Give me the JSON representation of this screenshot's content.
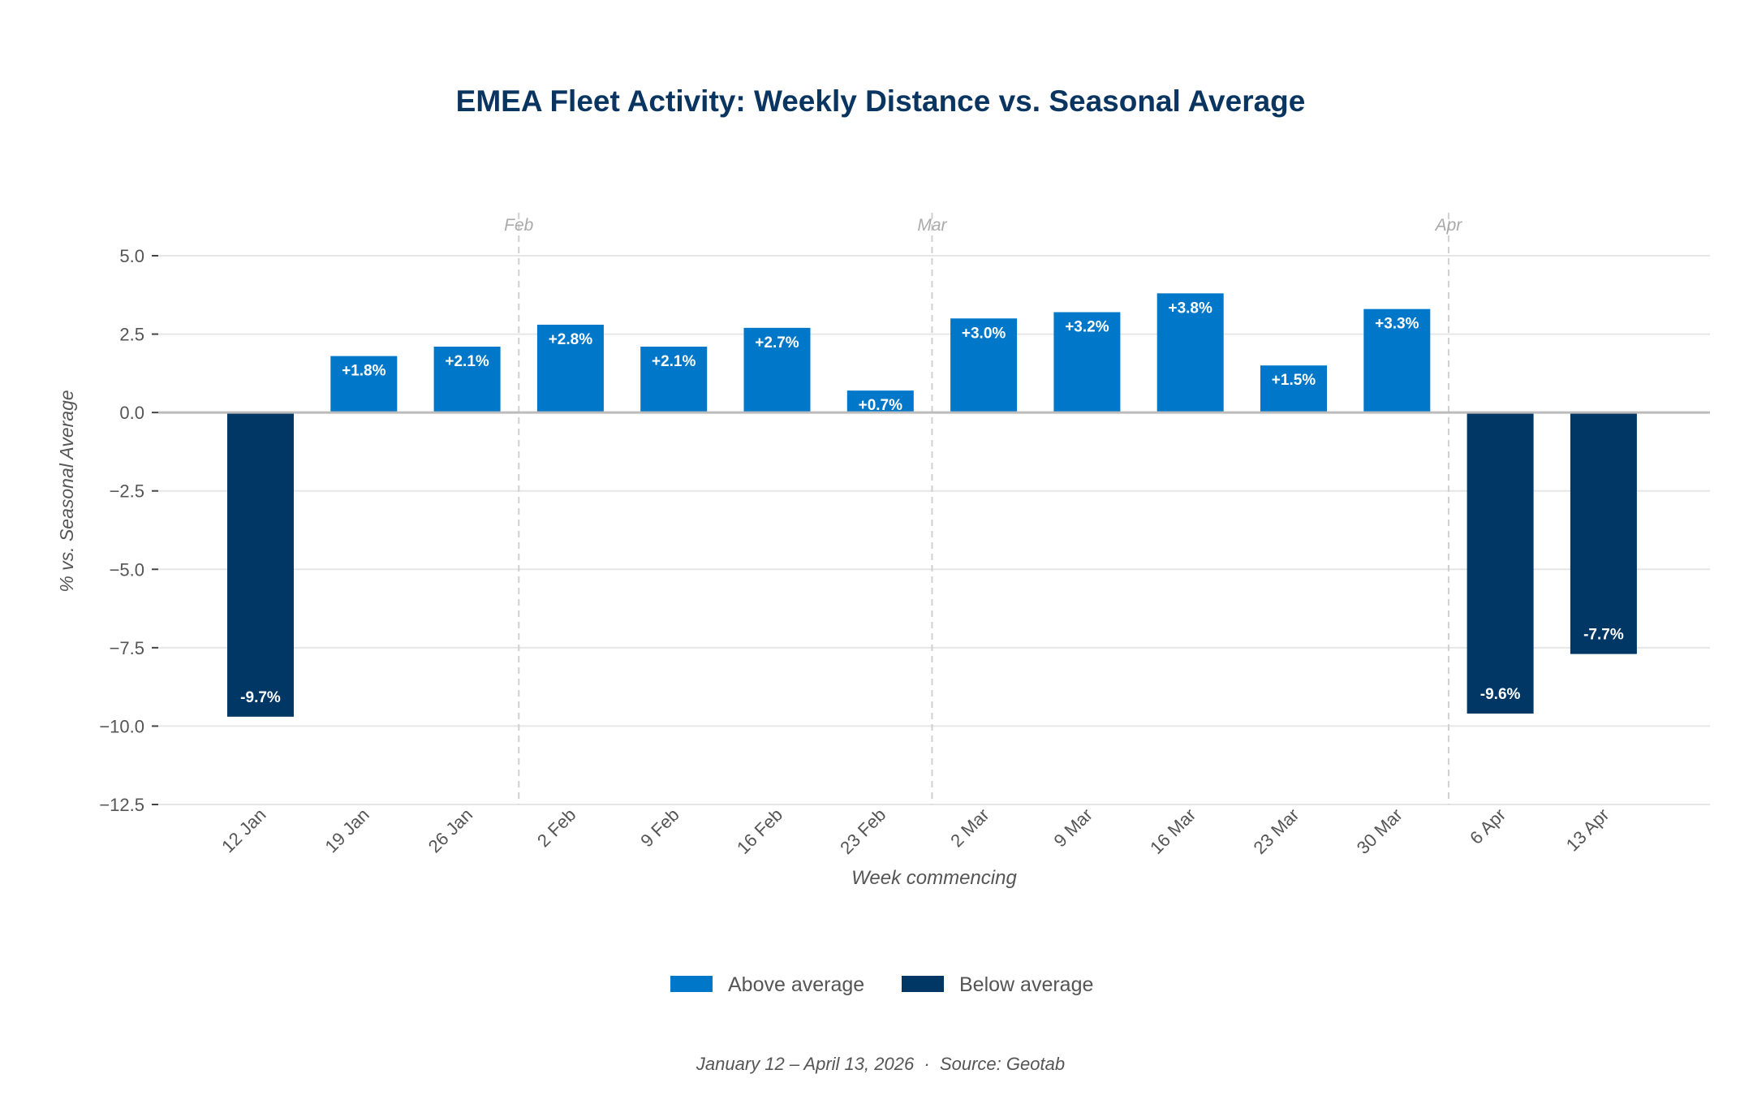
{
  "chart_data": {
    "type": "bar",
    "title": "EMEA Fleet Activity: Weekly Distance vs. Seasonal Average",
    "xlabel": "Week commencing",
    "ylabel": "% vs. Seasonal Average",
    "categories": [
      "12 Jan",
      "19 Jan",
      "26 Jan",
      "2 Feb",
      "9 Feb",
      "16 Feb",
      "23 Feb",
      "2 Mar",
      "9 Mar",
      "16 Mar",
      "23 Mar",
      "30 Mar",
      "6 Apr",
      "13 Apr"
    ],
    "values": [
      -9.7,
      1.8,
      2.1,
      2.8,
      2.1,
      2.7,
      0.7,
      3.0,
      3.2,
      3.8,
      1.5,
      3.3,
      -9.6,
      -7.7
    ],
    "data_labels": [
      "-9.7%",
      "+1.8%",
      "+2.1%",
      "+2.8%",
      "+2.1%",
      "+2.7%",
      "+0.7%",
      "+3.0%",
      "+3.2%",
      "+3.8%",
      "+1.5%",
      "+3.3%",
      "-9.6%",
      "-7.7%"
    ],
    "ylim": [
      -12.5,
      5.0
    ],
    "yticks": [
      "5.0",
      "2.5",
      "0.0",
      "−2.5",
      "−5.0",
      "−7.5",
      "−10.0",
      "−12.5"
    ],
    "ytick_values": [
      5.0,
      2.5,
      0.0,
      -2.5,
      -5.0,
      -7.5,
      -10.0,
      -12.5
    ],
    "month_markers": [
      {
        "label": "Feb",
        "between": [
          "26 Jan",
          "2 Feb"
        ]
      },
      {
        "label": "Mar",
        "between": [
          "23 Feb",
          "2 Mar"
        ]
      },
      {
        "label": "Apr",
        "between": [
          "30 Mar",
          "6 Apr"
        ]
      }
    ],
    "grid": true,
    "legend": {
      "placement": "bottom",
      "entries": [
        {
          "label": "Above average",
          "color": "#0077c8"
        },
        {
          "label": "Below average",
          "color": "#003764"
        }
      ]
    },
    "footer": "January 12 – April 13, 2026  ·  Source: Geotab"
  }
}
